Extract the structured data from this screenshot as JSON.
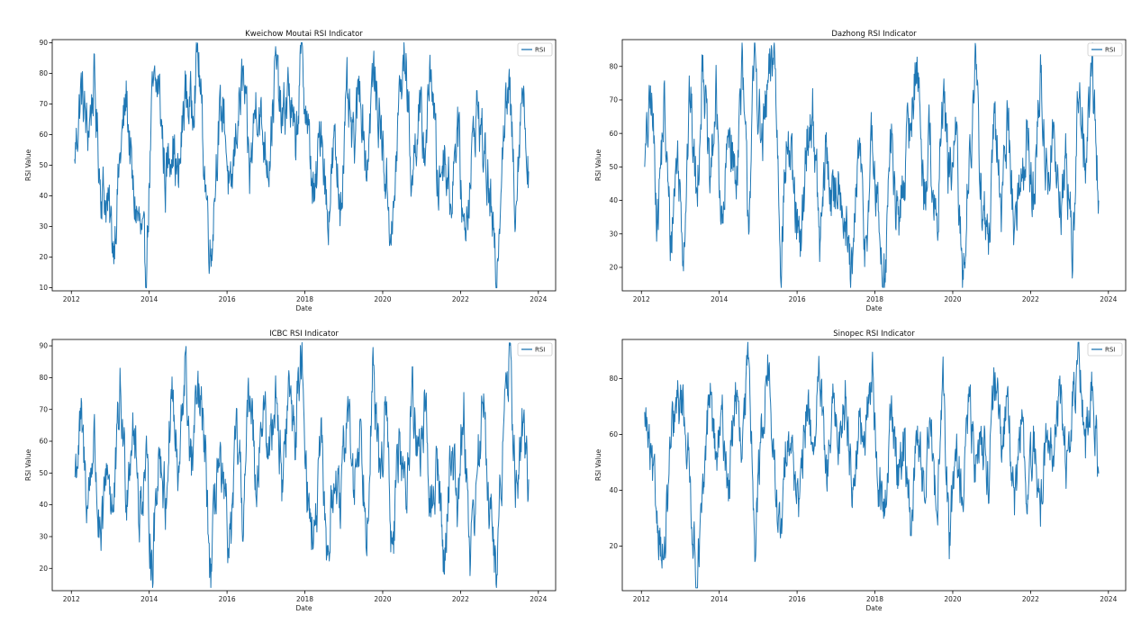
{
  "chart_data": [
    {
      "type": "line",
      "title": "Kweichow Moutai RSI Indicator",
      "xlabel": "Date",
      "ylabel": "RSI Value",
      "x_range": [
        "2012-01-01",
        "2024-01-01"
      ],
      "ylim": [
        9,
        91
      ],
      "xticks": [
        "2012",
        "2014",
        "2016",
        "2018",
        "2020",
        "2022",
        "2024"
      ],
      "yticks": [
        10,
        20,
        30,
        40,
        50,
        60,
        70,
        80,
        90
      ],
      "legend": "top-right",
      "grid": false,
      "color": "#1f77b4",
      "series": [
        {
          "name": "RSI",
          "x": [
            "2012-02",
            "2012-04",
            "2012-06",
            "2012-08",
            "2012-10",
            "2012-12",
            "2013-02",
            "2013-04",
            "2013-06",
            "2013-08",
            "2013-10",
            "2013-12",
            "2014-02",
            "2014-04",
            "2014-06",
            "2014-08",
            "2014-10",
            "2014-12",
            "2015-02",
            "2015-04",
            "2015-06",
            "2015-08",
            "2015-10",
            "2015-12",
            "2016-02",
            "2016-04",
            "2016-06",
            "2016-08",
            "2016-10",
            "2016-12",
            "2017-02",
            "2017-04",
            "2017-06",
            "2017-08",
            "2017-10",
            "2017-12",
            "2018-02",
            "2018-04",
            "2018-06",
            "2018-08",
            "2018-10",
            "2018-12",
            "2019-02",
            "2019-04",
            "2019-06",
            "2019-08",
            "2019-10",
            "2019-12",
            "2020-02",
            "2020-04",
            "2020-06",
            "2020-08",
            "2020-10",
            "2020-12",
            "2021-02",
            "2021-04",
            "2021-06",
            "2021-08",
            "2021-10",
            "2021-12",
            "2022-02",
            "2022-04",
            "2022-06",
            "2022-08",
            "2022-10",
            "2022-12",
            "2023-02",
            "2023-04",
            "2023-06",
            "2023-08",
            "2023-10"
          ],
          "values": [
            52,
            75,
            60,
            77,
            44,
            38,
            24,
            52,
            73,
            40,
            30,
            15,
            72,
            76,
            45,
            60,
            43,
            74,
            68,
            88,
            50,
            20,
            58,
            70,
            35,
            64,
            78,
            46,
            73,
            60,
            52,
            83,
            62,
            76,
            55,
            86,
            60,
            36,
            66,
            32,
            56,
            38,
            71,
            54,
            78,
            48,
            80,
            66,
            45,
            25,
            70,
            88,
            44,
            68,
            55,
            84,
            42,
            56,
            38,
            65,
            28,
            46,
            70,
            56,
            40,
            12,
            60,
            75,
            38,
            78,
            48
          ]
        }
      ]
    },
    {
      "type": "line",
      "title": "Dazhong RSI Indicator",
      "xlabel": "Date",
      "ylabel": "RSI Value",
      "x_range": [
        "2012-01-01",
        "2024-01-01"
      ],
      "ylim": [
        13,
        88
      ],
      "xticks": [
        "2012",
        "2014",
        "2016",
        "2018",
        "2020",
        "2022",
        "2024"
      ],
      "yticks": [
        20,
        30,
        40,
        50,
        60,
        70,
        80
      ],
      "legend": "top-right",
      "grid": false,
      "color": "#1f77b4",
      "series": [
        {
          "name": "RSI",
          "x": [
            "2012-02",
            "2012-04",
            "2012-06",
            "2012-08",
            "2012-10",
            "2012-12",
            "2013-02",
            "2013-04",
            "2013-06",
            "2013-08",
            "2013-10",
            "2013-12",
            "2014-02",
            "2014-04",
            "2014-06",
            "2014-08",
            "2014-10",
            "2014-12",
            "2015-02",
            "2015-04",
            "2015-06",
            "2015-08",
            "2015-10",
            "2015-12",
            "2016-02",
            "2016-04",
            "2016-06",
            "2016-08",
            "2016-10",
            "2016-12",
            "2017-02",
            "2017-04",
            "2017-06",
            "2017-08",
            "2017-10",
            "2017-12",
            "2018-02",
            "2018-04",
            "2018-06",
            "2018-08",
            "2018-10",
            "2018-12",
            "2019-02",
            "2019-04",
            "2019-06",
            "2019-08",
            "2019-10",
            "2019-12",
            "2020-02",
            "2020-04",
            "2020-06",
            "2020-08",
            "2020-10",
            "2020-12",
            "2021-02",
            "2021-04",
            "2021-06",
            "2021-08",
            "2021-10",
            "2021-12",
            "2022-02",
            "2022-04",
            "2022-06",
            "2022-08",
            "2022-10",
            "2022-12",
            "2023-02",
            "2023-04",
            "2023-06",
            "2023-08",
            "2023-10"
          ],
          "values": [
            50,
            71,
            35,
            68,
            26,
            55,
            27,
            72,
            40,
            85,
            42,
            70,
            28,
            64,
            45,
            78,
            35,
            84,
            55,
            72,
            86,
            24,
            60,
            40,
            22,
            58,
            66,
            25,
            55,
            38,
            50,
            30,
            14,
            58,
            25,
            56,
            35,
            16,
            60,
            30,
            48,
            64,
            83,
            42,
            60,
            26,
            74,
            45,
            58,
            16,
            52,
            77,
            40,
            26,
            62,
            40,
            65,
            30,
            48,
            58,
            38,
            78,
            45,
            60,
            35,
            52,
            25,
            78,
            48,
            82,
            40
          ]
        }
      ]
    },
    {
      "type": "line",
      "title": "ICBC RSI Indicator",
      "xlabel": "Date",
      "ylabel": "RSI Value",
      "x_range": [
        "2012-01-01",
        "2024-01-01"
      ],
      "ylim": [
        13,
        92
      ],
      "xticks": [
        "2012",
        "2014",
        "2016",
        "2018",
        "2020",
        "2022",
        "2024"
      ],
      "yticks": [
        20,
        30,
        40,
        50,
        60,
        70,
        80,
        90
      ],
      "legend": "top-right",
      "grid": false,
      "color": "#1f77b4",
      "series": [
        {
          "name": "RSI",
          "x": [
            "2012-02",
            "2012-04",
            "2012-06",
            "2012-08",
            "2012-10",
            "2012-12",
            "2013-02",
            "2013-04",
            "2013-06",
            "2013-08",
            "2013-10",
            "2013-12",
            "2014-02",
            "2014-04",
            "2014-06",
            "2014-08",
            "2014-10",
            "2014-12",
            "2015-02",
            "2015-04",
            "2015-06",
            "2015-08",
            "2015-10",
            "2015-12",
            "2016-02",
            "2016-04",
            "2016-06",
            "2016-08",
            "2016-10",
            "2016-12",
            "2017-02",
            "2017-04",
            "2017-06",
            "2017-08",
            "2017-10",
            "2017-12",
            "2018-02",
            "2018-04",
            "2018-06",
            "2018-08",
            "2018-10",
            "2018-12",
            "2019-02",
            "2019-04",
            "2019-06",
            "2019-08",
            "2019-10",
            "2019-12",
            "2020-02",
            "2020-04",
            "2020-06",
            "2020-08",
            "2020-10",
            "2020-12",
            "2021-02",
            "2021-04",
            "2021-06",
            "2021-08",
            "2021-10",
            "2021-12",
            "2022-02",
            "2022-04",
            "2022-06",
            "2022-08",
            "2022-10",
            "2022-12",
            "2023-02",
            "2023-04",
            "2023-06",
            "2023-08",
            "2023-10"
          ],
          "values": [
            49,
            65,
            40,
            62,
            22,
            55,
            36,
            75,
            45,
            68,
            38,
            52,
            20,
            60,
            40,
            78,
            44,
            85,
            50,
            75,
            60,
            15,
            55,
            40,
            26,
            62,
            35,
            80,
            48,
            70,
            55,
            78,
            45,
            76,
            62,
            90,
            40,
            28,
            58,
            22,
            50,
            36,
            74,
            45,
            65,
            35,
            81,
            48,
            70,
            22,
            60,
            42,
            76,
            55,
            68,
            38,
            52,
            20,
            60,
            42,
            70,
            25,
            48,
            72,
            40,
            16,
            58,
            88,
            45,
            62,
            48
          ]
        }
      ]
    },
    {
      "type": "line",
      "title": "Sinopec RSI Indicator",
      "xlabel": "Date",
      "ylabel": "RSI Value",
      "x_range": [
        "2012-01-01",
        "2024-01-01"
      ],
      "ylim": [
        4,
        94
      ],
      "xticks": [
        "2012",
        "2014",
        "2016",
        "2018",
        "2020",
        "2022",
        "2024"
      ],
      "yticks": [
        20,
        40,
        60,
        80
      ],
      "legend": "top-right",
      "grid": false,
      "color": "#1f77b4",
      "series": [
        {
          "name": "RSI",
          "x": [
            "2012-02",
            "2012-04",
            "2012-06",
            "2012-08",
            "2012-10",
            "2012-12",
            "2013-02",
            "2013-04",
            "2013-06",
            "2013-08",
            "2013-10",
            "2013-12",
            "2014-02",
            "2014-04",
            "2014-06",
            "2014-08",
            "2014-10",
            "2014-12",
            "2015-02",
            "2015-04",
            "2015-06",
            "2015-08",
            "2015-10",
            "2015-12",
            "2016-02",
            "2016-04",
            "2016-06",
            "2016-08",
            "2016-10",
            "2016-12",
            "2017-02",
            "2017-04",
            "2017-06",
            "2017-08",
            "2017-10",
            "2017-12",
            "2018-02",
            "2018-04",
            "2018-06",
            "2018-08",
            "2018-10",
            "2018-12",
            "2019-02",
            "2019-04",
            "2019-06",
            "2019-08",
            "2019-10",
            "2019-12",
            "2020-02",
            "2020-04",
            "2020-06",
            "2020-08",
            "2020-10",
            "2020-12",
            "2021-02",
            "2021-04",
            "2021-06",
            "2021-08",
            "2021-10",
            "2021-12",
            "2022-02",
            "2022-04",
            "2022-06",
            "2022-08",
            "2022-10",
            "2022-12",
            "2023-02",
            "2023-04",
            "2023-06",
            "2023-08",
            "2023-10"
          ],
          "values": [
            68,
            48,
            30,
            13,
            55,
            70,
            72,
            42,
            8,
            35,
            78,
            50,
            64,
            40,
            78,
            48,
            90,
            25,
            60,
            86,
            45,
            20,
            65,
            48,
            35,
            72,
            55,
            80,
            42,
            68,
            58,
            75,
            40,
            62,
            55,
            87,
            42,
            30,
            70,
            45,
            60,
            25,
            62,
            40,
            70,
            30,
            75,
            21,
            58,
            35,
            72,
            48,
            62,
            45,
            82,
            50,
            78,
            30,
            65,
            40,
            56,
            32,
            64,
            50,
            78,
            48,
            70,
            90,
            55,
            78,
            46
          ]
        }
      ]
    }
  ]
}
